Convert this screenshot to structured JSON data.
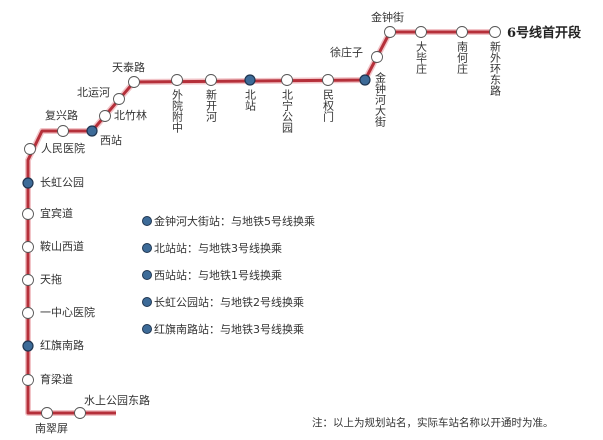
{
  "title": "6号线首开段",
  "line_color": "#b5303a",
  "interchange_color": "#3d6b98",
  "stations": [
    {
      "name": "南翠屏",
      "interchange": false
    },
    {
      "name": "水上公园东路",
      "interchange": false
    },
    {
      "name": "育梁道",
      "interchange": false
    },
    {
      "name": "红旗南路",
      "interchange": true
    },
    {
      "name": "一中心医院",
      "interchange": false
    },
    {
      "name": "天拖",
      "interchange": false
    },
    {
      "name": "鞍山西道",
      "interchange": false
    },
    {
      "name": "宜宾道",
      "interchange": false
    },
    {
      "name": "长虹公园",
      "interchange": true
    },
    {
      "name": "人民医院",
      "interchange": false
    },
    {
      "name": "复兴路",
      "interchange": false
    },
    {
      "name": "西站",
      "interchange": true
    },
    {
      "name": "北竹林",
      "interchange": false
    },
    {
      "name": "北运河",
      "interchange": false
    },
    {
      "name": "天泰路",
      "interchange": false
    },
    {
      "name": "外院附中",
      "interchange": false
    },
    {
      "name": "新开河",
      "interchange": false
    },
    {
      "name": "北站",
      "interchange": true
    },
    {
      "name": "北宁公园",
      "interchange": false
    },
    {
      "name": "民权门",
      "interchange": false
    },
    {
      "name": "金钟河大街",
      "interchange": true
    },
    {
      "name": "徐庄子",
      "interchange": false
    },
    {
      "name": "金钟街",
      "interchange": false
    },
    {
      "name": "大毕庄",
      "interchange": false
    },
    {
      "name": "南何庄",
      "interchange": false
    },
    {
      "name": "新外环东路",
      "interchange": false
    }
  ],
  "legend": [
    "金钟河大街站：与地铁5号线换乘",
    "北站站：与地铁3号线换乘",
    "西站站：与地铁1号线换乘",
    "长虹公园站：与地铁2号线换乘",
    "红旗南路站：与地铁3号线换乘"
  ],
  "note": "注：以上为规划站名，实际车站名称以开通时为准。"
}
